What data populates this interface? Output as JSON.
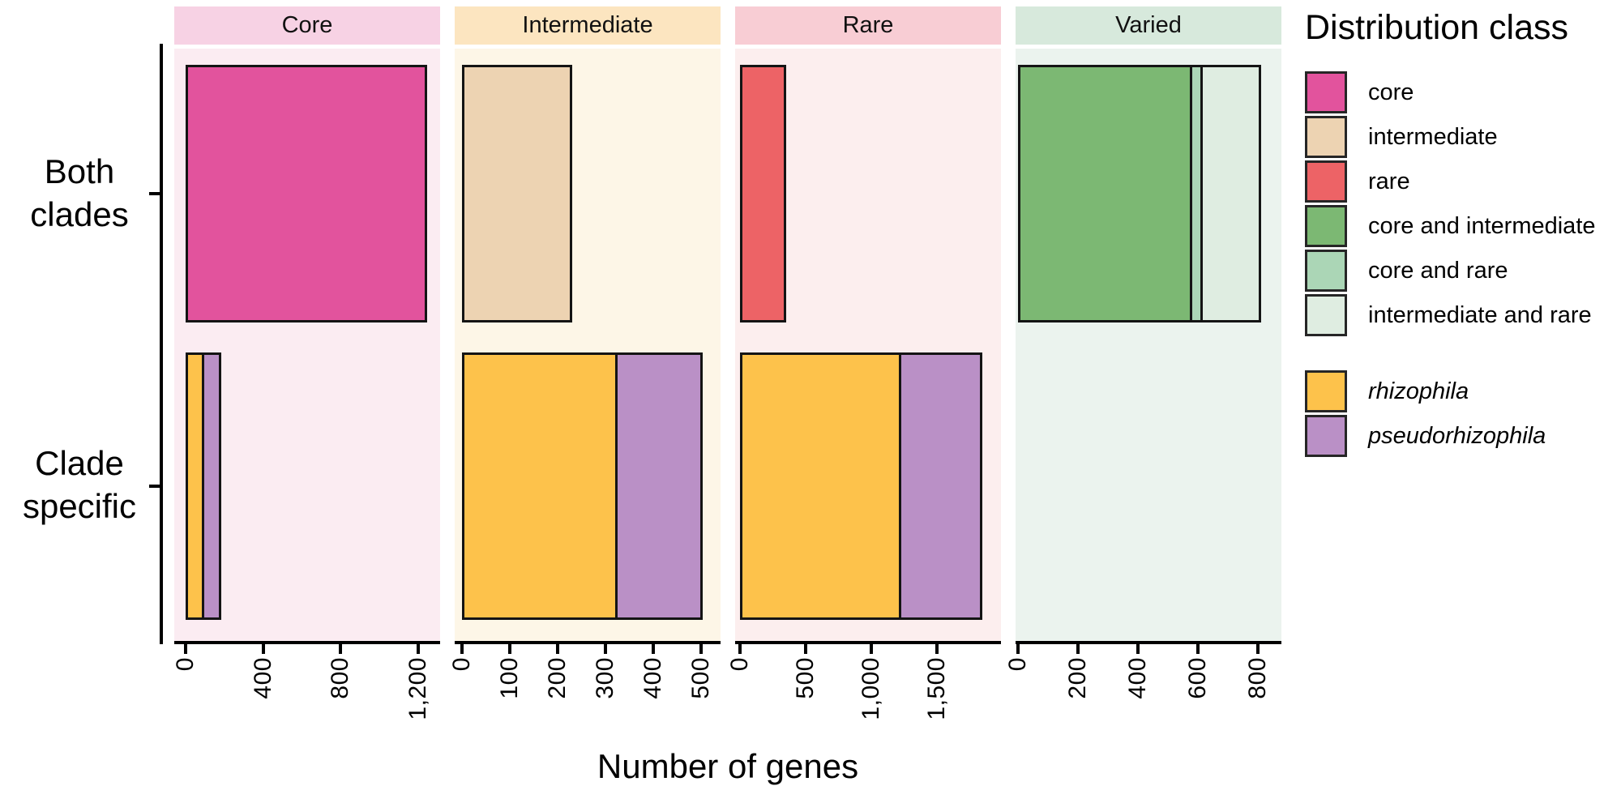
{
  "chart_data": {
    "type": "bar",
    "orientation": "horizontal_stacked",
    "xlabel": "Number of genes",
    "grid": false,
    "row_categories": [
      "Both clades",
      "Clade specific"
    ],
    "row_categories_lines": [
      [
        "Both",
        "clades"
      ],
      [
        "Clade",
        "specific"
      ]
    ],
    "facets": [
      {
        "label": "Core",
        "header_color": "#f7d2e4",
        "bg_color": "#fbecf2",
        "axis_domain": [
          -60,
          1315
        ],
        "ticks": [
          {
            "value": 0,
            "label": "0"
          },
          {
            "value": 400,
            "label": "400"
          },
          {
            "value": 800,
            "label": "800"
          },
          {
            "value": 1200,
            "label": "1,200"
          }
        ],
        "series": [
          {
            "row": "Both clades",
            "segments": [
              {
                "class": "core",
                "value": 1250
              }
            ]
          },
          {
            "row": "Clade specific",
            "segments": [
              {
                "class": "rhizophila",
                "value": 95
              },
              {
                "class": "pseudorhizophila",
                "value": 90
              }
            ]
          }
        ]
      },
      {
        "label": "Intermediate",
        "header_color": "#fce5c0",
        "bg_color": "#fdf6e7",
        "axis_domain": [
          -16,
          540
        ],
        "ticks": [
          {
            "value": 0,
            "label": "0"
          },
          {
            "value": 100,
            "label": "100"
          },
          {
            "value": 200,
            "label": "200"
          },
          {
            "value": 300,
            "label": "300"
          },
          {
            "value": 400,
            "label": "400"
          },
          {
            "value": 500,
            "label": "500"
          }
        ],
        "series": [
          {
            "row": "Both clades",
            "segments": [
              {
                "class": "intermediate",
                "value": 230
              }
            ]
          },
          {
            "row": "Clade specific",
            "segments": [
              {
                "class": "rhizophila",
                "value": 325
              },
              {
                "class": "pseudorhizophila",
                "value": 178
              }
            ]
          }
        ]
      },
      {
        "label": "Rare",
        "header_color": "#f8cdd4",
        "bg_color": "#fceeee",
        "axis_domain": [
          -38,
          1990
        ],
        "ticks": [
          {
            "value": 0,
            "label": "0"
          },
          {
            "value": 500,
            "label": "500"
          },
          {
            "value": 1000,
            "label": "1,000"
          },
          {
            "value": 1500,
            "label": "1,500"
          }
        ],
        "series": [
          {
            "row": "Both clades",
            "segments": [
              {
                "class": "rare",
                "value": 350
              }
            ]
          },
          {
            "row": "Clade specific",
            "segments": [
              {
                "class": "rhizophila",
                "value": 1230
              },
              {
                "class": "pseudorhizophila",
                "value": 615
              }
            ]
          }
        ]
      },
      {
        "label": "Varied",
        "header_color": "#d7e9dc",
        "bg_color": "#ebf3ee",
        "axis_domain": [
          -7,
          878
        ],
        "ticks": [
          {
            "value": 0,
            "label": "0"
          },
          {
            "value": 200,
            "label": "200"
          },
          {
            "value": 400,
            "label": "400"
          },
          {
            "value": 600,
            "label": "600"
          },
          {
            "value": 800,
            "label": "800"
          }
        ],
        "series": [
          {
            "row": "Both clades",
            "segments": [
              {
                "class": "core_and_intermediate",
                "value": 580
              },
              {
                "class": "core_and_rare",
                "value": 35
              },
              {
                "class": "intermediate_and_rare",
                "value": 195
              }
            ]
          },
          {
            "row": "Clade specific",
            "segments": []
          }
        ]
      }
    ]
  },
  "legend": {
    "title": "Distribution class",
    "classes": [
      {
        "key": "core",
        "label": "core",
        "color": "#e2539d"
      },
      {
        "key": "intermediate",
        "label": "intermediate",
        "color": "#edd3b2"
      },
      {
        "key": "rare",
        "label": "rare",
        "color": "#ed6366"
      },
      {
        "key": "core_and_intermediate",
        "label": "core and intermediate",
        "color": "#7cb873"
      },
      {
        "key": "core_and_rare",
        "label": "core and rare",
        "color": "#abd6b6"
      },
      {
        "key": "intermediate_and_rare",
        "label": "intermediate and rare",
        "color": "#dfede1"
      }
    ],
    "species": [
      {
        "key": "rhizophila",
        "label": "rhizophila",
        "color": "#fdc24b"
      },
      {
        "key": "pseudorhizophila",
        "label": "pseudorhizophila",
        "color": "#ba90c6"
      }
    ]
  }
}
